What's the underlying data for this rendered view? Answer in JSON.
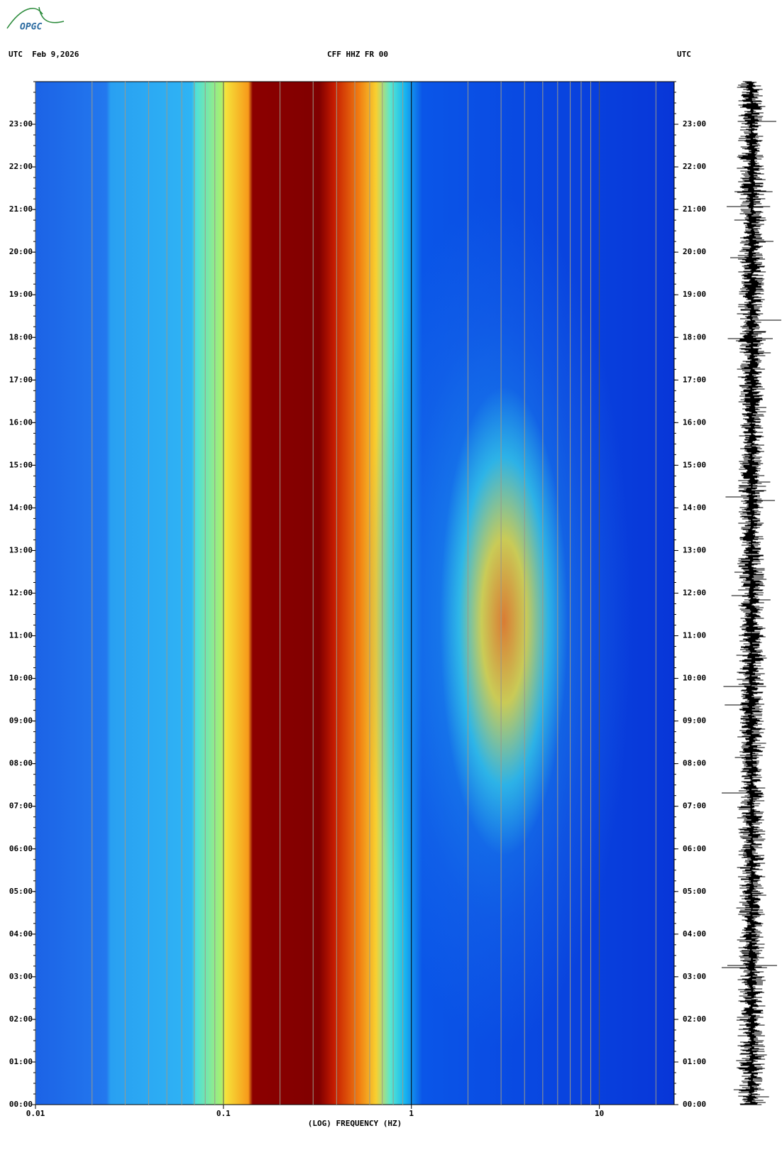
{
  "logo": "OPGC",
  "chart_data": {
    "type": "spectrogram",
    "header_left": "UTC  Feb 9,2026",
    "title": "CFF HHZ FR 00",
    "header_right": "UTC",
    "xlabel": "(LOG) FREQUENCY (HZ)",
    "xscale": "log",
    "xlim": [
      0.01,
      25
    ],
    "xticks": [
      0.01,
      0.1,
      1,
      10
    ],
    "ylim": [
      0,
      24
    ],
    "yticks": [
      {
        "value": 0,
        "label": "00:00"
      },
      {
        "value": 1,
        "label": "01:00"
      },
      {
        "value": 2,
        "label": "02:00"
      },
      {
        "value": 3,
        "label": "03:00"
      },
      {
        "value": 4,
        "label": "04:00"
      },
      {
        "value": 5,
        "label": "05:00"
      },
      {
        "value": 6,
        "label": "06:00"
      },
      {
        "value": 7,
        "label": "07:00"
      },
      {
        "value": 8,
        "label": "08:00"
      },
      {
        "value": 9,
        "label": "09:00"
      },
      {
        "value": 10,
        "label": "10:00"
      },
      {
        "value": 11,
        "label": "11:00"
      },
      {
        "value": 12,
        "label": "12:00"
      },
      {
        "value": 13,
        "label": "13:00"
      },
      {
        "value": 14,
        "label": "14:00"
      },
      {
        "value": 15,
        "label": "15:00"
      },
      {
        "value": 16,
        "label": "16:00"
      },
      {
        "value": 17,
        "label": "17:00"
      },
      {
        "value": 18,
        "label": "18:00"
      },
      {
        "value": 19,
        "label": "19:00"
      },
      {
        "value": 20,
        "label": "20:00"
      },
      {
        "value": 21,
        "label": "21:00"
      },
      {
        "value": 22,
        "label": "22:00"
      },
      {
        "value": 23,
        "label": "23:00"
      }
    ],
    "grid": true
  }
}
